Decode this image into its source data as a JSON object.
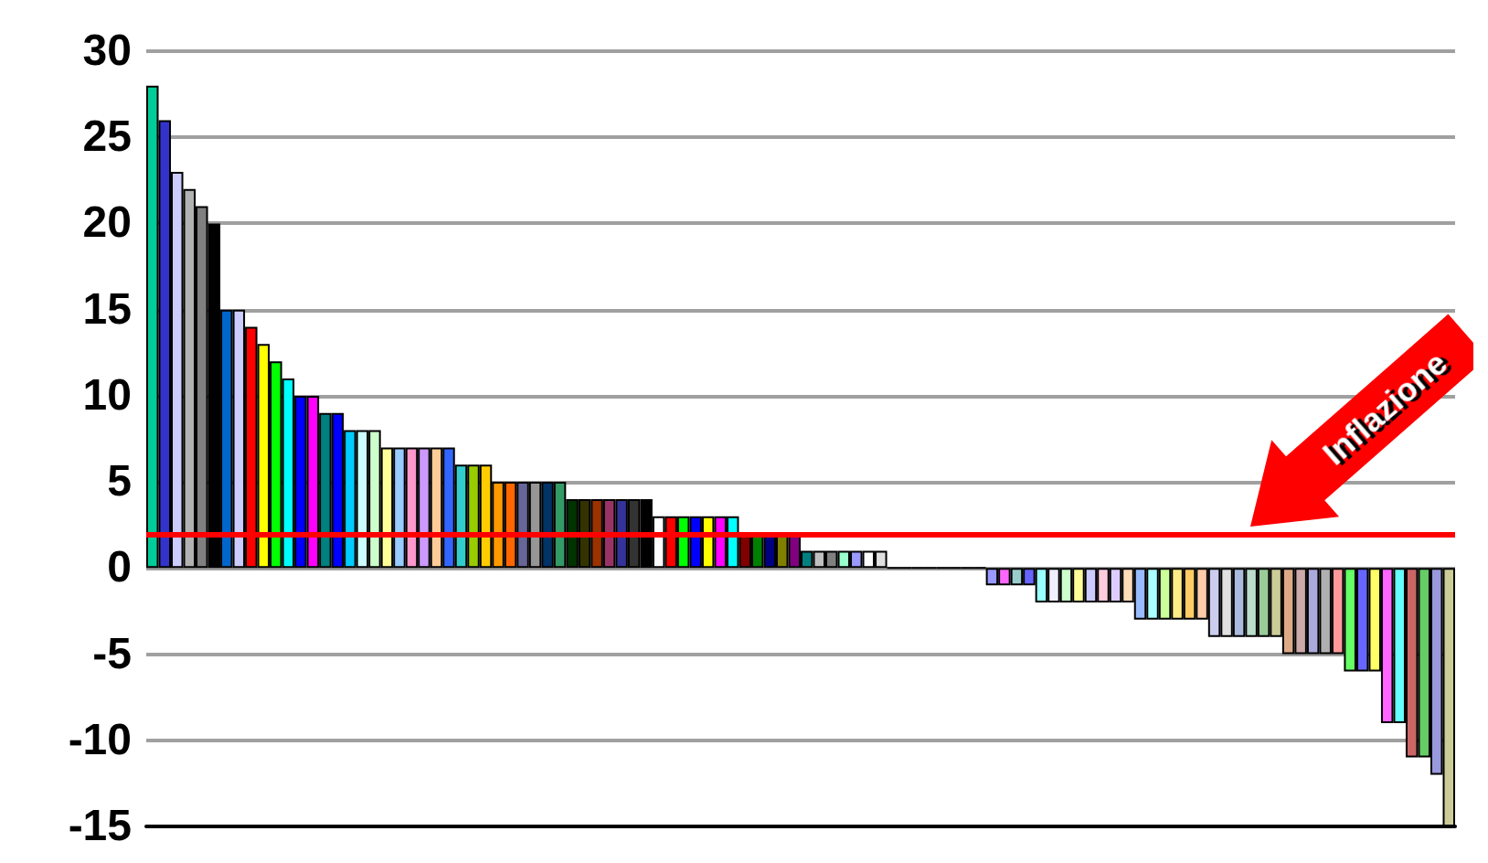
{
  "chart_data": {
    "type": "bar",
    "categories": [
      null,
      null,
      null,
      null,
      null,
      null,
      null,
      null,
      null,
      null,
      null,
      null,
      null,
      null,
      null,
      null,
      null,
      null,
      null,
      null,
      null,
      null,
      null,
      null,
      null,
      null,
      null,
      null,
      null,
      null,
      null,
      null,
      null,
      null,
      null,
      null,
      null,
      null,
      null,
      null,
      null,
      null,
      null,
      null,
      null,
      null,
      null,
      null,
      null,
      null,
      null,
      null,
      null,
      null,
      null,
      null,
      null,
      null,
      null,
      null,
      null,
      null,
      null,
      null,
      null,
      null,
      null,
      null,
      null,
      null,
      null,
      null,
      null,
      null,
      null,
      null,
      null,
      null,
      null,
      null,
      null,
      null,
      null,
      null,
      null,
      null,
      null,
      null,
      null,
      null,
      null,
      null,
      null,
      null,
      null,
      null,
      null,
      null,
      null,
      null,
      null,
      null,
      null,
      null,
      null,
      null
    ],
    "values": [
      28,
      26,
      23,
      22,
      21,
      20,
      15,
      15,
      14,
      13,
      12,
      11,
      10,
      10,
      9,
      9,
      8,
      8,
      8,
      7,
      7,
      7,
      7,
      7,
      7,
      6,
      6,
      6,
      5,
      5,
      5,
      5,
      5,
      5,
      4,
      4,
      4,
      4,
      4,
      4,
      4,
      3,
      3,
      3,
      3,
      3,
      3,
      3,
      2,
      2,
      2,
      2,
      2,
      1,
      1,
      1,
      1,
      1,
      1,
      1,
      0,
      0,
      0,
      0,
      0,
      0,
      0,
      0,
      -1,
      -1,
      -1,
      -1,
      -2,
      -2,
      -2,
      -2,
      -2,
      -2,
      -2,
      -2,
      -3,
      -3,
      -3,
      -3,
      -3,
      -3,
      -4,
      -4,
      -4,
      -4,
      -4,
      -4,
      -5,
      -5,
      -5,
      -5,
      -5,
      -6,
      -6,
      -6,
      -9,
      -9,
      -11,
      -11,
      -12,
      -15
    ],
    "colors": [
      "#00cc99",
      "#3333cc",
      "#ccccff",
      "#b2b2b2",
      "#808080",
      "#000000",
      "#0066cc",
      "#ccccff",
      "#ff0000",
      "#ffff00",
      "#00ff00",
      "#00ffff",
      "#0000ff",
      "#ff00ff",
      "#008080",
      "#0000ff",
      "#00ccff",
      "#ccffff",
      "#ccffcc",
      "#ffff99",
      "#99ccff",
      "#ff99cc",
      "#cc99ff",
      "#ffcc99",
      "#3366ff",
      "#33cccc",
      "#99cc00",
      "#ffcc00",
      "#ff9900",
      "#ff6600",
      "#666699",
      "#969696",
      "#003366",
      "#339966",
      "#003300",
      "#333300",
      "#993300",
      "#993366",
      "#333399",
      "#333333",
      "#000000",
      "#ffffff",
      "#ff0000",
      "#00ff00",
      "#0000ff",
      "#ffff00",
      "#ff00ff",
      "#00ffff",
      "#800000",
      "#008000",
      "#000080",
      "#808000",
      "#800080",
      "#008080",
      "#c0c0c0",
      "#808080",
      "#99ffcc",
      "#9999ff",
      "#ffffff",
      "#e0e0e0",
      "#000000",
      "#000000",
      "#000000",
      "#000000",
      "#000000",
      "#000000",
      "#000000",
      "#000000",
      "#9999ff",
      "#ff66ff",
      "#99cccc",
      "#6666ff",
      "#99ffff",
      "#f0f0ff",
      "#ccffcc",
      "#ffff99",
      "#ccccff",
      "#ffccdd",
      "#ddccff",
      "#ffddbb",
      "#99bbff",
      "#aaffff",
      "#ccff99",
      "#ffee88",
      "#ffcc66",
      "#ffccaa",
      "#ccccee",
      "#e0e0e0",
      "#aabbdd",
      "#bbddcc",
      "#99cc99",
      "#cccc99",
      "#ddaa88",
      "#ccaaaa",
      "#aaaadd",
      "#b0b0b0",
      "#ff9999",
      "#66ff66",
      "#6666ff",
      "#ffff66",
      "#ff66ff",
      "#66ffff",
      "#cc6666",
      "#66cc66",
      "#9999dd",
      "#cccc99"
    ],
    "ylim": [
      -15,
      30
    ],
    "yticks": [
      -15,
      -10,
      -5,
      0,
      5,
      10,
      15,
      20,
      25,
      30
    ],
    "grid": "y",
    "tick_labels": "y",
    "ref_lines": [
      {
        "axis": "y",
        "value": 2,
        "label": "Inflazione",
        "color": "#ff0000"
      }
    ]
  }
}
